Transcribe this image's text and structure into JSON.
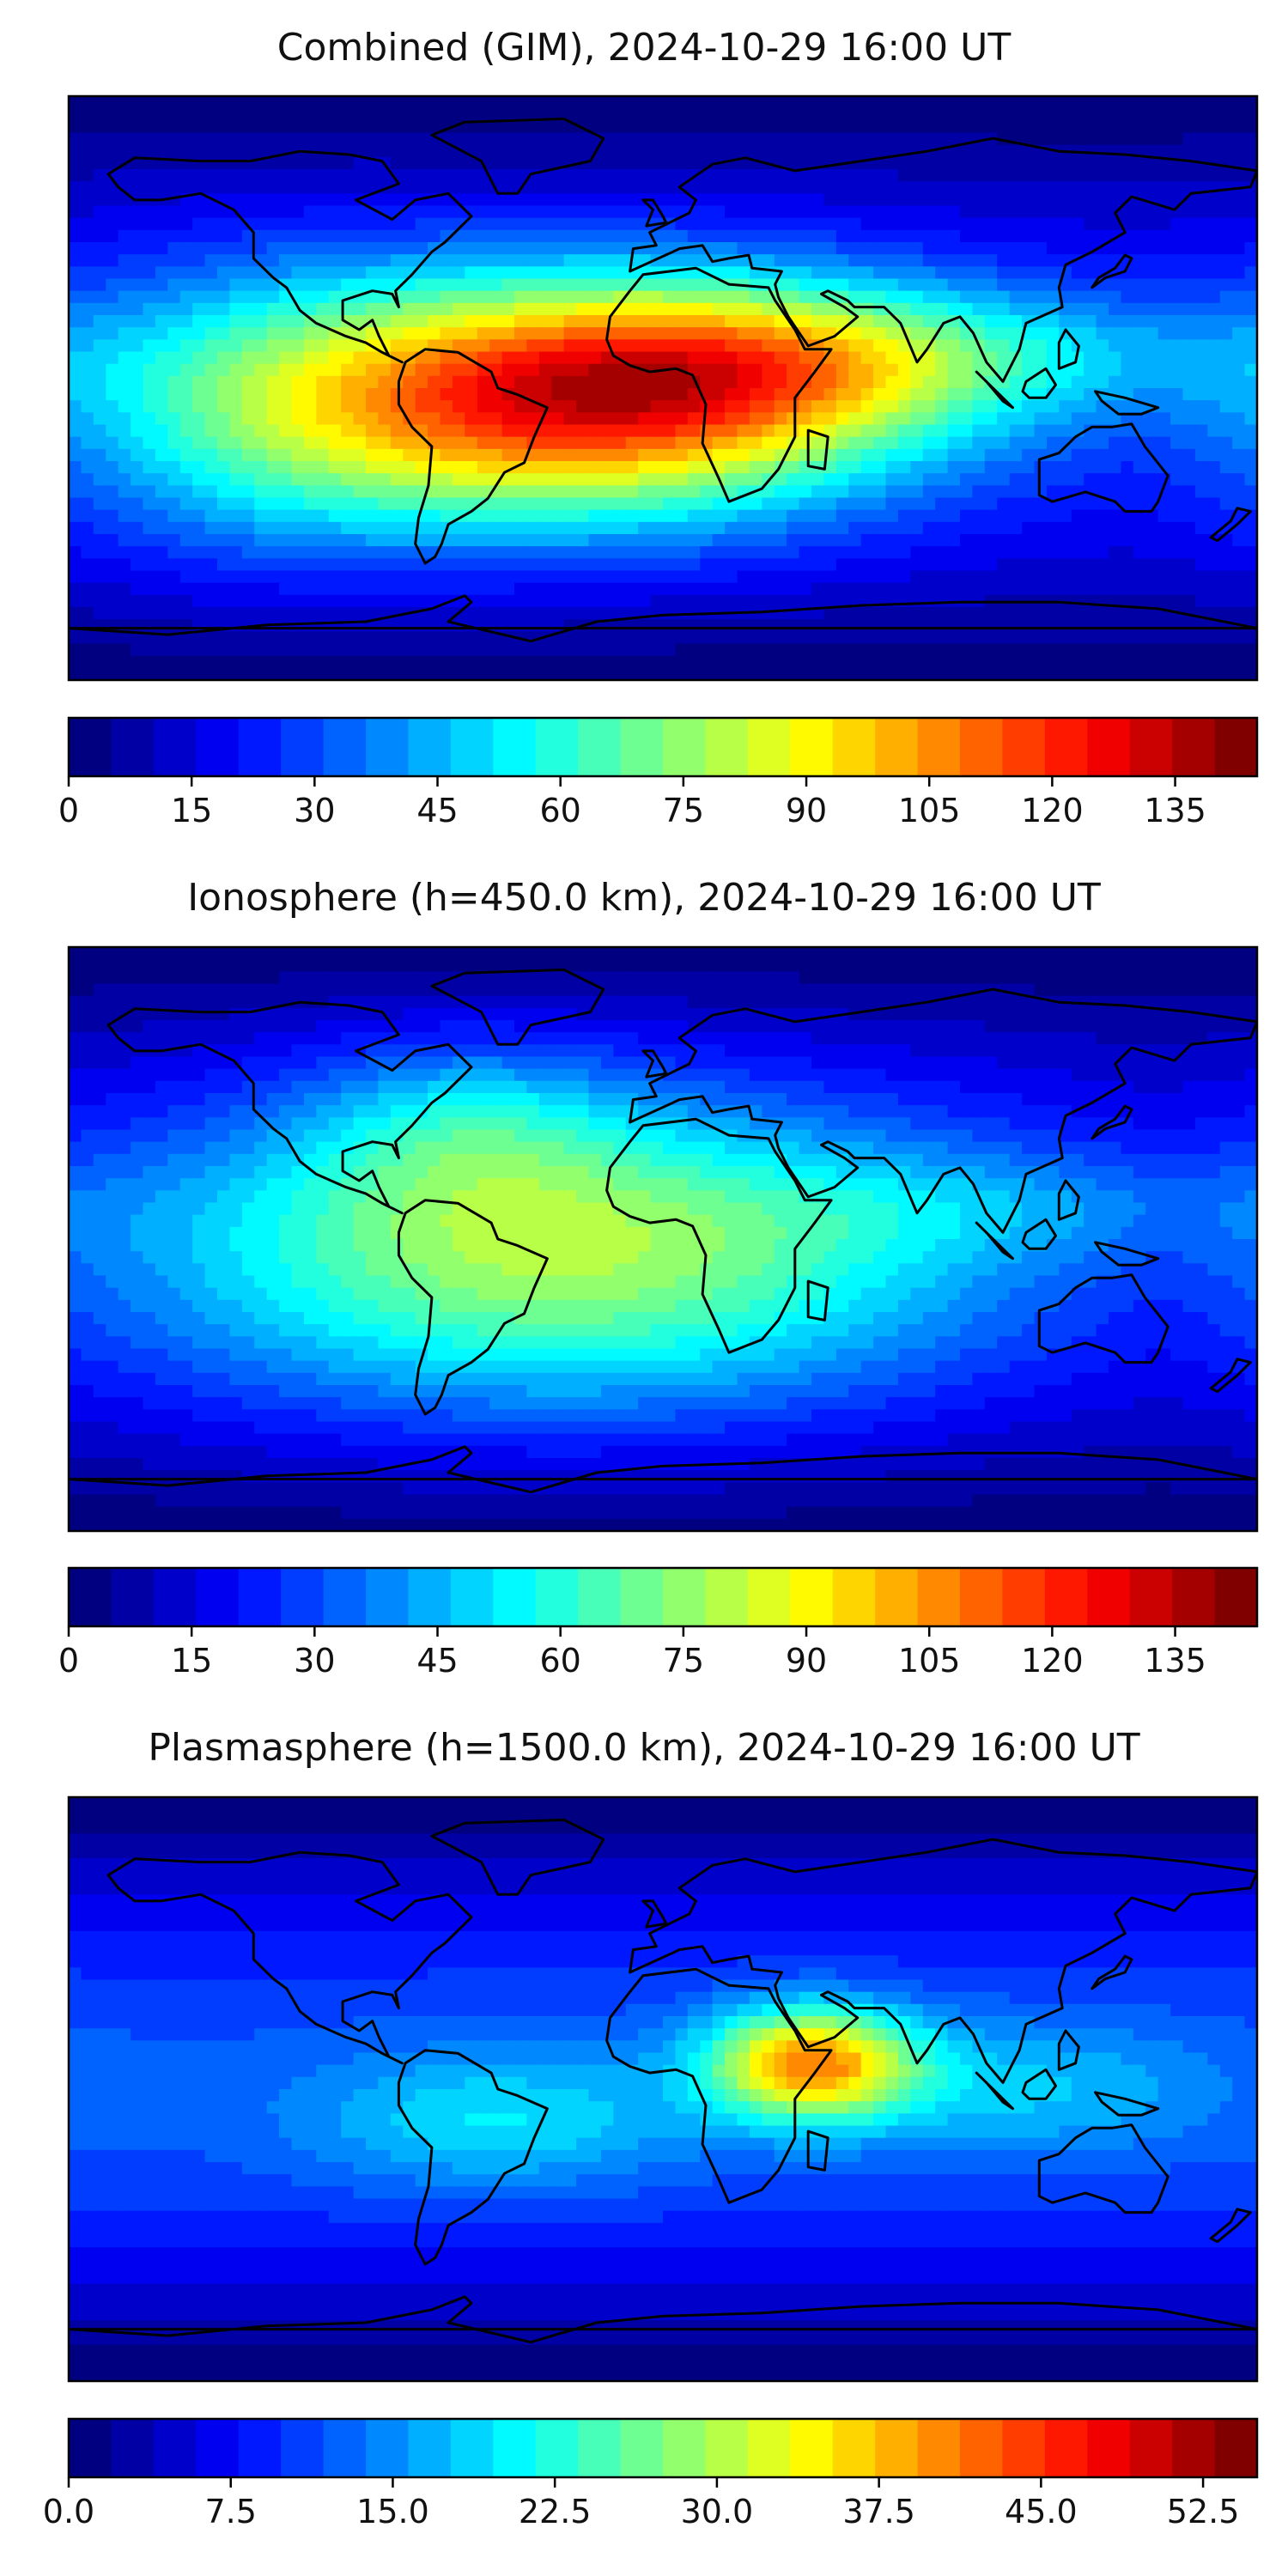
{
  "panels": [
    {
      "title": "Combined (GIM), 2024-10-29 16:00 UT",
      "vmax": 145,
      "colorbar_ticks": [
        "0",
        "15",
        "30",
        "45",
        "60",
        "75",
        "90",
        "105",
        "120",
        "135"
      ],
      "blobs": [
        {
          "lon": -40,
          "lat": -5,
          "amp": 70,
          "sx": 75,
          "sy": 28
        },
        {
          "lon": -15,
          "lat": 0,
          "amp": 35,
          "sx": 55,
          "sy": 22
        },
        {
          "lon": 40,
          "lat": 8,
          "amp": 30,
          "sx": 50,
          "sy": 18
        },
        {
          "lon": 110,
          "lat": 10,
          "amp": 18,
          "sx": 60,
          "sy": 14
        },
        {
          "lon": -120,
          "lat": -10,
          "amp": 15,
          "sx": 40,
          "sy": 35
        }
      ],
      "base": 22
    },
    {
      "title": "Ionosphere  (h=450.0 km), 2024-10-29 16:00 UT",
      "vmax": 145,
      "colorbar_ticks": [
        "0",
        "15",
        "30",
        "45",
        "60",
        "75",
        "90",
        "105",
        "120",
        "135"
      ],
      "blobs": [
        {
          "lon": -30,
          "lat": -5,
          "amp": 60,
          "sx": 90,
          "sy": 35
        },
        {
          "lon": -60,
          "lat": 35,
          "amp": 20,
          "sx": 35,
          "sy": 20
        },
        {
          "lon": 110,
          "lat": 10,
          "amp": 12,
          "sx": 60,
          "sy": 12
        }
      ],
      "base": 18
    },
    {
      "title": "Plasmasphere (h=1500.0 km), 2024-10-29 16:00 UT",
      "vmax": 55,
      "colorbar_ticks": [
        "0.0",
        "7.5",
        "15.0",
        "22.5",
        "30.0",
        "37.5",
        "45.0",
        "52.5"
      ],
      "blobs": [
        {
          "lon": 45,
          "lat": 8,
          "amp": 28,
          "sx": 22,
          "sy": 12
        },
        {
          "lon": -50,
          "lat": -10,
          "amp": 8,
          "sx": 40,
          "sy": 15
        },
        {
          "lon": 110,
          "lat": 0,
          "amp": 6,
          "sx": 40,
          "sy": 15
        }
      ],
      "base": 12
    }
  ]
}
